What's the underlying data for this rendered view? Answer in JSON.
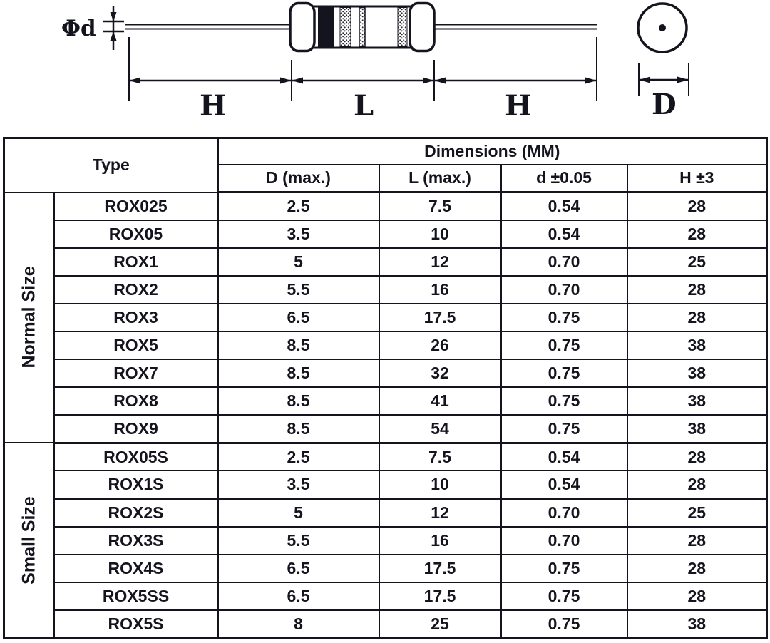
{
  "colors": {
    "ink": "#14141e",
    "paper": "#ffffff"
  },
  "diagram": {
    "lead_diameter_label": "Φd",
    "left_lead_dim_label": "H",
    "body_dim_label": "L",
    "right_lead_dim_label": "H",
    "end_view_dim_label": "D"
  },
  "table": {
    "type_header": "Type",
    "dimensions_header": "Dimensions (MM)",
    "columns": [
      "D (max.)",
      "L (max.)",
      "d ±0.05",
      "H ±3"
    ],
    "groups": [
      {
        "label": "Normal Size",
        "rows": [
          [
            "ROX025",
            "2.5",
            "7.5",
            "0.54",
            "28"
          ],
          [
            "ROX05",
            "3.5",
            "10",
            "0.54",
            "28"
          ],
          [
            "ROX1",
            "5",
            "12",
            "0.70",
            "25"
          ],
          [
            "ROX2",
            "5.5",
            "16",
            "0.70",
            "28"
          ],
          [
            "ROX3",
            "6.5",
            "17.5",
            "0.75",
            "28"
          ],
          [
            "ROX5",
            "8.5",
            "26",
            "0.75",
            "38"
          ],
          [
            "ROX7",
            "8.5",
            "32",
            "0.75",
            "38"
          ],
          [
            "ROX8",
            "8.5",
            "41",
            "0.75",
            "38"
          ],
          [
            "ROX9",
            "8.5",
            "54",
            "0.75",
            "38"
          ]
        ]
      },
      {
        "label": "Small Size",
        "rows": [
          [
            "ROX05S",
            "2.5",
            "7.5",
            "0.54",
            "28"
          ],
          [
            "ROX1S",
            "3.5",
            "10",
            "0.54",
            "28"
          ],
          [
            "ROX2S",
            "5",
            "12",
            "0.70",
            "25"
          ],
          [
            "ROX3S",
            "5.5",
            "16",
            "0.70",
            "28"
          ],
          [
            "ROX4S",
            "6.5",
            "17.5",
            "0.75",
            "28"
          ],
          [
            "ROX5SS",
            "6.5",
            "17.5",
            "0.75",
            "28"
          ],
          [
            "ROX5S",
            "8",
            "25",
            "0.75",
            "38"
          ]
        ]
      }
    ]
  }
}
